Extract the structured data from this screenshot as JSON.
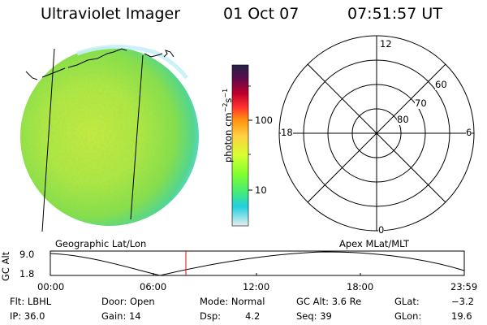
{
  "header": {
    "instrument": "Ultraviolet Imager",
    "date": "01 Oct 07",
    "time": "07:51:57 UT"
  },
  "colorbar": {
    "label": "photon cm",
    "label_sup1": "−2",
    "label_s": "s",
    "label_sup2": "−1",
    "tick_100": "100",
    "tick_10": "10",
    "colors": [
      "#222244",
      "#5a0c4e",
      "#c00028",
      "#ff3030",
      "#ff9010",
      "#ffd040",
      "#d8ff30",
      "#80ff30",
      "#40e880",
      "#20d0e0",
      "#e6eeee"
    ]
  },
  "polar_plot": {
    "mlt_top": "12",
    "mlt_left": "18",
    "mlt_right": "6",
    "mlt_bottom": "0",
    "lat_60": "60",
    "lat_70": "70",
    "lat_80": "80"
  },
  "labels": {
    "left_caption": "Geographic Lat/Lon",
    "right_caption": "Apex MLat/MLT"
  },
  "altitude_plot": {
    "ylabel": "GC Alt",
    "y_top": "9.0",
    "y_bottom": "1.8",
    "x_ticks": [
      "00:00",
      "06:00",
      "12:00",
      "18:00",
      "23:59"
    ]
  },
  "info": {
    "flt": "Flt: LBHL",
    "ip": "IP: 36.0",
    "door": "Door: Open",
    "gain": "Gain: 14",
    "mode": "Mode: Normal",
    "dsp_label": "Dsp:",
    "dsp_value": "4.2",
    "gcalt": "GC Alt: 3.6 Re",
    "seq": "Seq: 39",
    "glat_label": "GLat:",
    "glat_value": "−3.2",
    "glon_label": "GLon:",
    "glon_value": "19.6"
  }
}
